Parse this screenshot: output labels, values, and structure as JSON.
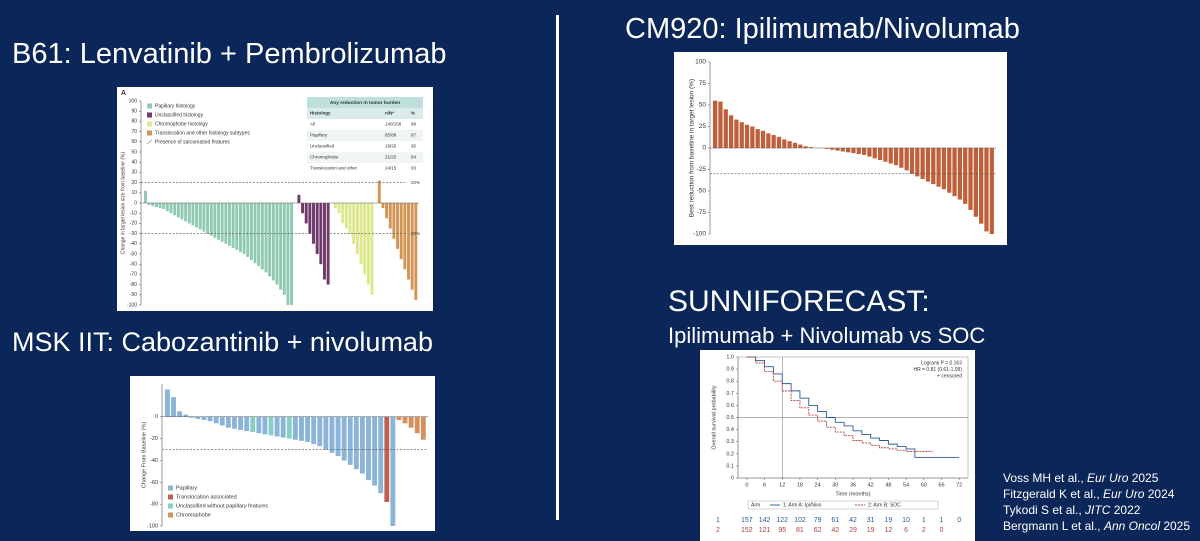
{
  "headings": {
    "b61": "B61: Lenvatinib + Pembrolizumab",
    "msk": "MSK IIT: Cabozantinib + nivolumab",
    "cm920": "CM920: Ipilimumab/Nivolumab",
    "sunni": "SUNNIFORECAST:",
    "sunni_sub": "Ipilimumab + Nivolumab vs SOC"
  },
  "references": [
    {
      "authors": "Voss MH et al., ",
      "journal": "Eur Uro",
      "year": " 2025"
    },
    {
      "authors": "Fitzgerald K et al., ",
      "journal": "Eur Uro",
      "year": " 2024"
    },
    {
      "authors": "Tykodi S et al., ",
      "journal": "JITC",
      "year": " 2022"
    },
    {
      "authors": "Bergmann L et al., ",
      "journal": "Ann Oncol",
      "year": " 2025"
    }
  ],
  "chart_data": [
    {
      "type": "bar",
      "panel_label": "A",
      "ylabel": "Change in target lesion size from baseline (%)",
      "ylim": [
        -100,
        100
      ],
      "yticks": [
        -100,
        -90,
        -80,
        -70,
        -60,
        -50,
        -40,
        -30,
        -20,
        -10,
        0,
        10,
        20,
        30,
        40,
        50,
        60,
        70,
        80,
        90,
        100
      ],
      "ref_lines": [
        {
          "value": 20,
          "label": "20%"
        },
        {
          "value": -30,
          "label": "-30%"
        }
      ],
      "series": [
        {
          "name": "Papillary histology",
          "color": "#8fcab1",
          "values": [
            12,
            -2,
            -3,
            -4,
            -5,
            -6,
            -8,
            -10,
            -12,
            -14,
            -16,
            -18,
            -20,
            -22,
            -24,
            -26,
            -28,
            -30,
            -32,
            -34,
            -36,
            -38,
            -40,
            -42,
            -44,
            -46,
            -48,
            -50,
            -53,
            -56,
            -59,
            -62,
            -65,
            -68,
            -72,
            -76,
            -80,
            -85,
            -90,
            -100,
            -100
          ]
        },
        {
          "name": "Unclassified histology",
          "color": "#6e3a6b",
          "values": [
            8,
            -10,
            -20,
            -30,
            -40,
            -50,
            -60,
            -75,
            -80
          ]
        },
        {
          "name": "Chromophobe histology",
          "color": "#dde88c",
          "values": [
            -5,
            -10,
            -20,
            -25,
            -30,
            -40,
            -50,
            -60,
            -70,
            -80,
            -90
          ]
        },
        {
          "name": "Translocation and other histology subtypes",
          "color": "#d39455",
          "values": [
            22,
            -5,
            -15,
            -25,
            -35,
            -45,
            -55,
            -65,
            -75,
            -85,
            -95
          ]
        }
      ],
      "legend_extra": "Presence of sarcomatoid features",
      "table": {
        "title": "Any reduction in tumor burden",
        "columns": [
          "Histology",
          "n/N*",
          "%"
        ],
        "rows": [
          [
            "All",
            "140/158",
            "89"
          ],
          [
            "Papillary",
            "85/88",
            "97"
          ],
          [
            "Unclassified",
            "19/20",
            "95"
          ],
          [
            "Chromophobe",
            "21/25",
            "84"
          ],
          [
            "Translocation and other",
            "14/15",
            "93"
          ]
        ]
      }
    },
    {
      "type": "bar",
      "ylabel": "Change From Baseline (%)",
      "ylim": [
        -100,
        30
      ],
      "yticks": [
        -100,
        -80,
        -60,
        -40,
        -20,
        0
      ],
      "ref_lines": [
        {
          "value": -30
        }
      ],
      "values": [
        25,
        18,
        5,
        2,
        -1,
        -2,
        -3,
        -4,
        -6,
        -8,
        -10,
        -11,
        -12,
        -13,
        -14,
        -15,
        -16,
        -17,
        -18,
        -19,
        -20,
        -21,
        -22,
        -23,
        -25,
        -27,
        -30,
        -33,
        -36,
        -40,
        -44,
        -48,
        -52,
        -58,
        -63,
        -70,
        -78,
        -100,
        -3,
        -6,
        -10,
        -15,
        -21
      ],
      "colors": [
        "#8ab4d8",
        "#8ab4d8",
        "#8ab4d8",
        "#8ab4d8",
        "#8ab4d8",
        "#8ab4d8",
        "#8ab4d8",
        "#8ab4d8",
        "#8ab4d8",
        "#8ab4d8",
        "#8ab4d8",
        "#8ab4d8",
        "#8ab4d8",
        "#8ab4d8",
        "#86d0c4",
        "#8ab4d8",
        "#8ab4d8",
        "#86d0c4",
        "#8ab4d8",
        "#8ab4d8",
        "#86d0c4",
        "#8ab4d8",
        "#8ab4d8",
        "#8ab4d8",
        "#8ab4d8",
        "#8ab4d8",
        "#8ab4d8",
        "#8ab4d8",
        "#8ab4d8",
        "#8ab4d8",
        "#8ab4d8",
        "#8ab4d8",
        "#8ab4d8",
        "#8ab4d8",
        "#8ab4d8",
        "#8ab4d8",
        "#c0604f",
        "#8ab4d8",
        "#d8905a",
        "#d8905a",
        "#d8905a",
        "#d8905a",
        "#d8905a"
      ],
      "legend": [
        {
          "name": "Papillary",
          "color": "#8ab4d8"
        },
        {
          "name": "Translocation associated",
          "color": "#c0604f"
        },
        {
          "name": "Unclassified without papillary features",
          "color": "#86d0c4"
        },
        {
          "name": "Chromophobe",
          "color": "#d8905a"
        }
      ]
    },
    {
      "type": "bar",
      "ylabel": "Best reduction from baseline in target lesion (%)",
      "ylim": [
        -100,
        100
      ],
      "yticks": [
        -100,
        -75,
        -50,
        -25,
        0,
        25,
        50,
        75,
        100
      ],
      "ref_lines": [
        {
          "value": -30
        }
      ],
      "color": "#c0603a",
      "values": [
        55,
        54,
        45,
        38,
        33,
        30,
        27,
        25,
        22,
        20,
        17,
        15,
        13,
        10,
        8,
        6,
        4,
        2,
        1,
        0,
        0,
        -1,
        -2,
        -3,
        -4,
        -5,
        -6,
        -7,
        -8,
        -10,
        -12,
        -14,
        -16,
        -18,
        -20,
        -23,
        -26,
        -30,
        -33,
        -36,
        -39,
        -42,
        -45,
        -48,
        -52,
        -56,
        -60,
        -65,
        -72,
        -80,
        -88,
        -97,
        -100
      ]
    },
    {
      "type": "line",
      "step": true,
      "xlabel": "Time (months)",
      "ylabel": "Overall survival probability",
      "x": [
        0,
        3,
        6,
        9,
        12,
        15,
        18,
        21,
        24,
        27,
        30,
        33,
        36,
        39,
        42,
        45,
        48,
        51,
        54,
        57,
        60,
        63,
        66,
        69,
        72
      ],
      "xlim": [
        -3,
        75
      ],
      "xticks": [
        0,
        6,
        12,
        18,
        24,
        30,
        36,
        42,
        48,
        54,
        60,
        66,
        72
      ],
      "ylim": [
        0,
        1
      ],
      "yticks": [
        0,
        0.1,
        0.2,
        0.3,
        0.4,
        0.5,
        0.6,
        0.7,
        0.8,
        0.9,
        {
          "value": 1,
          "label": "1.0"
        }
      ],
      "ref_lines": [
        {
          "axis": "x",
          "value": 12
        },
        {
          "axis": "y",
          "value": 0.5
        }
      ],
      "series": [
        {
          "name": "1: Arm A: Ipi/Nivo",
          "color": "#2a5a9a",
          "values": [
            1,
            0.97,
            0.92,
            0.86,
            0.78,
            0.72,
            0.66,
            0.6,
            0.55,
            0.5,
            0.46,
            0.43,
            0.39,
            0.36,
            0.33,
            0.31,
            0.28,
            0.26,
            0.24,
            0.17,
            0.17,
            0.17,
            0.17,
            0.17,
            0.17
          ]
        },
        {
          "name": "2: Arm B: SOC",
          "color": "#b04040",
          "values": [
            1,
            0.95,
            0.88,
            0.8,
            0.72,
            0.64,
            0.58,
            0.52,
            0.47,
            0.42,
            0.38,
            0.35,
            0.31,
            0.29,
            0.27,
            0.25,
            0.24,
            0.23,
            0.22,
            0.22,
            0.22,
            0.22,
            null,
            null,
            null
          ]
        }
      ],
      "legend_title": "Arm",
      "annotations": [
        "Logrank P = 0.163",
        "HR = 0.81 (0.61-1.09)",
        "+ censored"
      ],
      "risk_table": [
        {
          "label": "1",
          "color": "#2a5a9a",
          "values": [
            157,
            142,
            122,
            102,
            79,
            61,
            42,
            31,
            19,
            10,
            1,
            1,
            0
          ]
        },
        {
          "label": "2",
          "color": "#b04040",
          "values": [
            152,
            121,
            95,
            81,
            62,
            42,
            29,
            19,
            12,
            6,
            2,
            0
          ]
        }
      ]
    }
  ]
}
